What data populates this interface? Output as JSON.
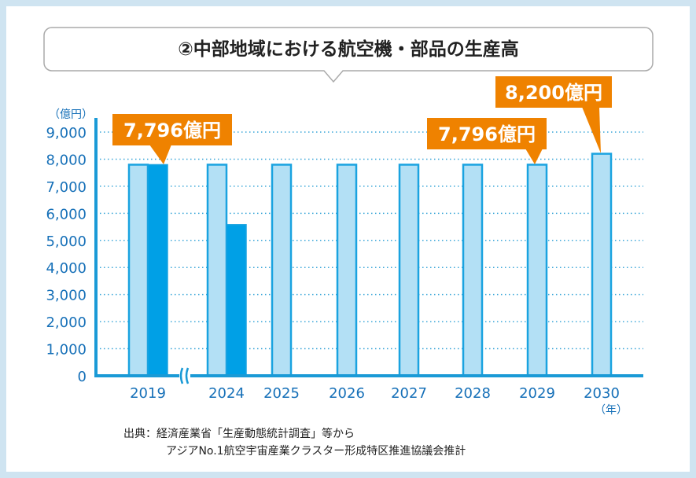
{
  "title": "②中部地域における航空機・部品の生産高",
  "source": {
    "line1": "出典：経済産業省「生産動態統計調査」等から",
    "line2": "アジアNo.1航空宇宙産業クラスター形成特区推進協議会推計"
  },
  "colors": {
    "light_bar": "#b3e0f5",
    "dark_bar": "#00a0e6",
    "bar_edge": "#1aa3e0",
    "axis": "#1a9ad6",
    "tick_text": "#1670b8",
    "callout": "#ef8200"
  },
  "chart_data": {
    "type": "bar",
    "ylabel": "（億円）",
    "xlabel": "（年）",
    "ylim": [
      0,
      9000
    ],
    "yticks": [
      "0",
      "1,000",
      "2,000",
      "3,000",
      "4,000",
      "5,000",
      "6,000",
      "7,000",
      "8,000",
      "9,000"
    ],
    "grid": true,
    "axis_break_between": [
      "2019",
      "2024"
    ],
    "categories": [
      "2019",
      "2024",
      "2025",
      "2026",
      "2027",
      "2028",
      "2029",
      "2030"
    ],
    "series": [
      {
        "values": [
          7796,
          7796,
          7796,
          7796,
          7796,
          7796,
          7796,
          8200
        ]
      },
      {
        "values": [
          7796,
          5580,
          null,
          null,
          null,
          null,
          null,
          null
        ]
      }
    ],
    "annotations": [
      {
        "text": "7,796億円",
        "target": "2019"
      },
      {
        "text": "7,796億円",
        "target": "2029"
      },
      {
        "text": "8,200億円",
        "target": "2030"
      }
    ]
  }
}
